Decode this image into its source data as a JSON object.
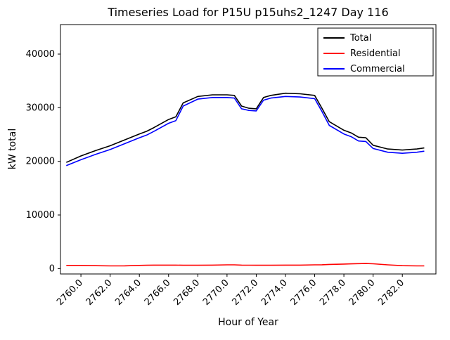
{
  "chart_data": {
    "type": "line",
    "title": "Timeseries Load for P15U p15uhs2_1247  Day 116",
    "xlabel": "Hour of Year",
    "ylabel": "kW total",
    "grid": false,
    "legend_position": "upper right",
    "xlim": [
      2758.6,
      2784.3
    ],
    "ylim": [
      -1000,
      45500
    ],
    "xticks": {
      "values": [
        2760,
        2762,
        2764,
        2766,
        2768,
        2770,
        2772,
        2774,
        2776,
        2778,
        2780,
        2782
      ],
      "labels": [
        "2760.0",
        "2762.0",
        "2764.0",
        "2766.0",
        "2768.0",
        "2770.0",
        "2772.0",
        "2774.0",
        "2776.0",
        "2778.0",
        "2780.0",
        "2782.0"
      ]
    },
    "yticks": {
      "values": [
        0,
        10000,
        20000,
        30000,
        40000
      ],
      "labels": [
        "0",
        "10000",
        "20000",
        "30000",
        "40000"
      ]
    },
    "x": [
      2759,
      2760,
      2761,
      2762,
      2763,
      2764,
      2764.5,
      2765,
      2766,
      2766.5,
      2767,
      2768,
      2769,
      2770,
      2770.5,
      2771,
      2771.5,
      2772,
      2772.5,
      2773,
      2774,
      2775,
      2776,
      2776.5,
      2777,
      2778,
      2778.5,
      2779,
      2779.5,
      2780,
      2781,
      2782,
      2783,
      2783.5
    ],
    "series": [
      {
        "name": "Total",
        "color": "#000000",
        "values": [
          19800,
          21000,
          22000,
          22900,
          24000,
          25100,
          25600,
          26300,
          27800,
          28300,
          30900,
          32100,
          32400,
          32400,
          32300,
          30300,
          29900,
          29800,
          31900,
          32300,
          32700,
          32600,
          32300,
          29900,
          27400,
          25800,
          25300,
          24500,
          24400,
          23000,
          22300,
          22100,
          22300,
          22500
        ]
      },
      {
        "name": "Residential",
        "color": "#ff0000",
        "values": [
          600,
          600,
          550,
          500,
          520,
          600,
          620,
          650,
          650,
          650,
          620,
          620,
          650,
          700,
          700,
          650,
          640,
          620,
          620,
          620,
          650,
          650,
          700,
          720,
          780,
          850,
          880,
          920,
          950,
          900,
          700,
          550,
          500,
          500
        ]
      },
      {
        "name": "Commercial",
        "color": "#0000ff",
        "values": [
          19200,
          20300,
          21300,
          22200,
          23300,
          24400,
          24900,
          25600,
          27100,
          27600,
          30300,
          31600,
          31900,
          31900,
          31800,
          29800,
          29500,
          29400,
          31400,
          31800,
          32100,
          32000,
          31700,
          29300,
          26700,
          25100,
          24600,
          23800,
          23700,
          22400,
          21700,
          21500,
          21700,
          21900
        ]
      }
    ]
  }
}
